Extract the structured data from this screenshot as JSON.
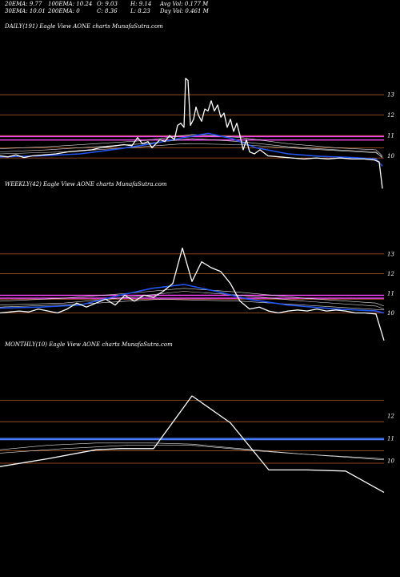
{
  "header": {
    "row1": [
      "20EMA: 9.77",
      "100EMA: 10.24",
      "O: 9.03",
      "H: 9.14",
      "Avg Vol: 0.177 M"
    ],
    "row2": [
      "30EMA: 10.01",
      "200EMA: 0",
      "C: 8.36",
      "L: 8.23",
      "Day Vol: 0.461 M"
    ]
  },
  "colors": {
    "background": "#000000",
    "price": "#ffffff",
    "ema_blue": "#2255ee",
    "support": "#b05a28",
    "magenta": "#ff44ff",
    "blue_band": "#4a7cff"
  },
  "chart_data": [
    {
      "type": "line",
      "title": "DAILY(191) Eagle  View AONE charts MunafaSutra.com",
      "y_ticks": [
        13,
        12,
        11,
        10
      ],
      "ylim": [
        9.0,
        14.5
      ],
      "levels": [
        13,
        12,
        11,
        10.4,
        9.9
      ],
      "magenta_levels": [
        10.95,
        10.78
      ],
      "price": [
        [
          0,
          10.0
        ],
        [
          10,
          9.95
        ],
        [
          20,
          10.05
        ],
        [
          30,
          9.92
        ],
        [
          40,
          10.0
        ],
        [
          55,
          10.05
        ],
        [
          70,
          10.1
        ],
        [
          85,
          10.2
        ],
        [
          100,
          10.25
        ],
        [
          115,
          10.3
        ],
        [
          125,
          10.4
        ],
        [
          135,
          10.45
        ],
        [
          145,
          10.5
        ],
        [
          155,
          10.55
        ],
        [
          165,
          10.5
        ],
        [
          172,
          10.9
        ],
        [
          178,
          10.6
        ],
        [
          185,
          10.7
        ],
        [
          190,
          10.4
        ],
        [
          195,
          10.6
        ],
        [
          200,
          10.8
        ],
        [
          206,
          10.7
        ],
        [
          212,
          11.0
        ],
        [
          218,
          10.8
        ],
        [
          222,
          11.5
        ],
        [
          226,
          11.6
        ],
        [
          230,
          11.4
        ],
        [
          232,
          13.8
        ],
        [
          235,
          13.7
        ],
        [
          238,
          11.5
        ],
        [
          242,
          11.8
        ],
        [
          245,
          12.4
        ],
        [
          248,
          12.0
        ],
        [
          252,
          11.7
        ],
        [
          256,
          12.3
        ],
        [
          260,
          12.2
        ],
        [
          264,
          12.7
        ],
        [
          268,
          12.2
        ],
        [
          272,
          12.5
        ],
        [
          276,
          11.9
        ],
        [
          280,
          12.1
        ],
        [
          284,
          11.4
        ],
        [
          288,
          11.8
        ],
        [
          292,
          11.2
        ],
        [
          296,
          11.6
        ],
        [
          300,
          11.0
        ],
        [
          304,
          10.3
        ],
        [
          308,
          10.8
        ],
        [
          312,
          10.2
        ],
        [
          318,
          10.1
        ],
        [
          325,
          10.3
        ],
        [
          335,
          10.0
        ],
        [
          350,
          9.95
        ],
        [
          365,
          9.9
        ],
        [
          380,
          9.85
        ],
        [
          395,
          9.9
        ],
        [
          410,
          9.85
        ],
        [
          425,
          9.9
        ],
        [
          440,
          9.85
        ],
        [
          455,
          9.85
        ],
        [
          468,
          9.8
        ],
        [
          474,
          9.7
        ],
        [
          478,
          8.4
        ]
      ],
      "ema_blue": [
        [
          0,
          9.95
        ],
        [
          50,
          10.0
        ],
        [
          100,
          10.1
        ],
        [
          150,
          10.35
        ],
        [
          190,
          10.6
        ],
        [
          230,
          10.9
        ],
        [
          260,
          11.1
        ],
        [
          290,
          10.85
        ],
        [
          320,
          10.4
        ],
        [
          360,
          10.1
        ],
        [
          400,
          9.98
        ],
        [
          440,
          9.92
        ],
        [
          470,
          9.85
        ],
        [
          478,
          9.5
        ]
      ],
      "ema_others": [
        [
          [
            0,
            10.2
          ],
          [
            60,
            10.3
          ],
          [
            120,
            10.45
          ],
          [
            180,
            10.6
          ],
          [
            240,
            10.85
          ],
          [
            300,
            10.7
          ],
          [
            360,
            10.45
          ],
          [
            420,
            10.3
          ],
          [
            470,
            10.2
          ],
          [
            478,
            9.9
          ]
        ],
        [
          [
            0,
            10.35
          ],
          [
            60,
            10.45
          ],
          [
            120,
            10.6
          ],
          [
            180,
            10.75
          ],
          [
            240,
            11.05
          ],
          [
            300,
            10.9
          ],
          [
            360,
            10.6
          ],
          [
            420,
            10.4
          ],
          [
            470,
            10.3
          ],
          [
            478,
            10.0
          ]
        ],
        [
          [
            0,
            10.1
          ],
          [
            80,
            10.2
          ],
          [
            160,
            10.4
          ],
          [
            230,
            10.6
          ],
          [
            300,
            10.55
          ],
          [
            380,
            10.35
          ],
          [
            470,
            10.15
          ],
          [
            478,
            9.95
          ]
        ]
      ]
    },
    {
      "type": "line",
      "title": "WEEKLY(42) Eagle  View AONE charts MunafaSutra.com",
      "y_ticks": [
        13,
        12,
        11,
        10
      ],
      "ylim": [
        8.8,
        14.5
      ],
      "levels": [
        13,
        12,
        10.7,
        10.0
      ],
      "magenta_levels": [
        10.9,
        10.75
      ],
      "price": [
        [
          0,
          10.0
        ],
        [
          12,
          10.05
        ],
        [
          24,
          10.1
        ],
        [
          36,
          10.05
        ],
        [
          48,
          10.2
        ],
        [
          60,
          10.1
        ],
        [
          72,
          10.0
        ],
        [
          84,
          10.2
        ],
        [
          96,
          10.5
        ],
        [
          108,
          10.3
        ],
        [
          120,
          10.5
        ],
        [
          132,
          10.7
        ],
        [
          144,
          10.4
        ],
        [
          156,
          10.9
        ],
        [
          168,
          10.6
        ],
        [
          180,
          10.9
        ],
        [
          192,
          10.8
        ],
        [
          204,
          11.1
        ],
        [
          216,
          11.5
        ],
        [
          228,
          13.3
        ],
        [
          240,
          11.6
        ],
        [
          252,
          12.6
        ],
        [
          264,
          12.3
        ],
        [
          276,
          12.1
        ],
        [
          288,
          11.5
        ],
        [
          300,
          10.6
        ],
        [
          312,
          10.2
        ],
        [
          324,
          10.3
        ],
        [
          336,
          10.1
        ],
        [
          348,
          10.0
        ],
        [
          360,
          10.1
        ],
        [
          372,
          10.15
        ],
        [
          384,
          10.1
        ],
        [
          396,
          10.2
        ],
        [
          408,
          10.1
        ],
        [
          420,
          10.15
        ],
        [
          432,
          10.1
        ],
        [
          444,
          10.0
        ],
        [
          456,
          10.0
        ],
        [
          470,
          9.95
        ],
        [
          480,
          8.6
        ]
      ],
      "ema_blue": [
        [
          0,
          10.25
        ],
        [
          50,
          10.3
        ],
        [
          100,
          10.4
        ],
        [
          150,
          10.9
        ],
        [
          190,
          11.25
        ],
        [
          230,
          11.45
        ],
        [
          270,
          11.1
        ],
        [
          310,
          10.7
        ],
        [
          360,
          10.4
        ],
        [
          420,
          10.2
        ],
        [
          470,
          10.1
        ],
        [
          480,
          10.0
        ]
      ],
      "ema_others": [
        [
          [
            0,
            10.4
          ],
          [
            80,
            10.5
          ],
          [
            160,
            10.8
          ],
          [
            230,
            11.1
          ],
          [
            300,
            10.9
          ],
          [
            380,
            10.6
          ],
          [
            470,
            10.35
          ],
          [
            480,
            10.2
          ]
        ],
        [
          [
            0,
            10.6
          ],
          [
            80,
            10.75
          ],
          [
            160,
            11.0
          ],
          [
            230,
            11.25
          ],
          [
            300,
            11.05
          ],
          [
            380,
            10.75
          ],
          [
            470,
            10.5
          ],
          [
            480,
            10.35
          ]
        ],
        [
          [
            0,
            10.3
          ],
          [
            100,
            10.45
          ],
          [
            200,
            10.7
          ],
          [
            300,
            10.6
          ],
          [
            400,
            10.35
          ],
          [
            480,
            10.15
          ]
        ]
      ]
    },
    {
      "type": "line",
      "title": "MONTHLY(10) Eagle  View AONE charts MunafaSutra.com",
      "y_ticks": [
        12,
        11,
        10
      ],
      "ylim": [
        8.4,
        13.4
      ],
      "levels": [
        12.7,
        11.75,
        10.45,
        9.9
      ],
      "blue_levels": [
        11.0,
        10.95
      ],
      "price": [
        [
          0,
          9.75
        ],
        [
          60,
          10.1
        ],
        [
          120,
          10.5
        ],
        [
          150,
          10.55
        ],
        [
          192,
          10.55
        ],
        [
          240,
          12.9
        ],
        [
          288,
          11.7
        ],
        [
          336,
          9.6
        ],
        [
          384,
          9.6
        ],
        [
          432,
          9.55
        ],
        [
          480,
          8.6
        ]
      ],
      "ema_blue": [],
      "ema_others": [
        [
          [
            0,
            10.5
          ],
          [
            60,
            10.7
          ],
          [
            120,
            10.8
          ],
          [
            190,
            10.8
          ],
          [
            240,
            10.75
          ],
          [
            300,
            10.55
          ],
          [
            380,
            10.3
          ],
          [
            480,
            10.1
          ]
        ],
        [
          [
            0,
            10.35
          ],
          [
            80,
            10.55
          ],
          [
            160,
            10.7
          ],
          [
            240,
            10.7
          ],
          [
            320,
            10.45
          ],
          [
            400,
            10.25
          ],
          [
            480,
            10.05
          ]
        ]
      ]
    }
  ]
}
